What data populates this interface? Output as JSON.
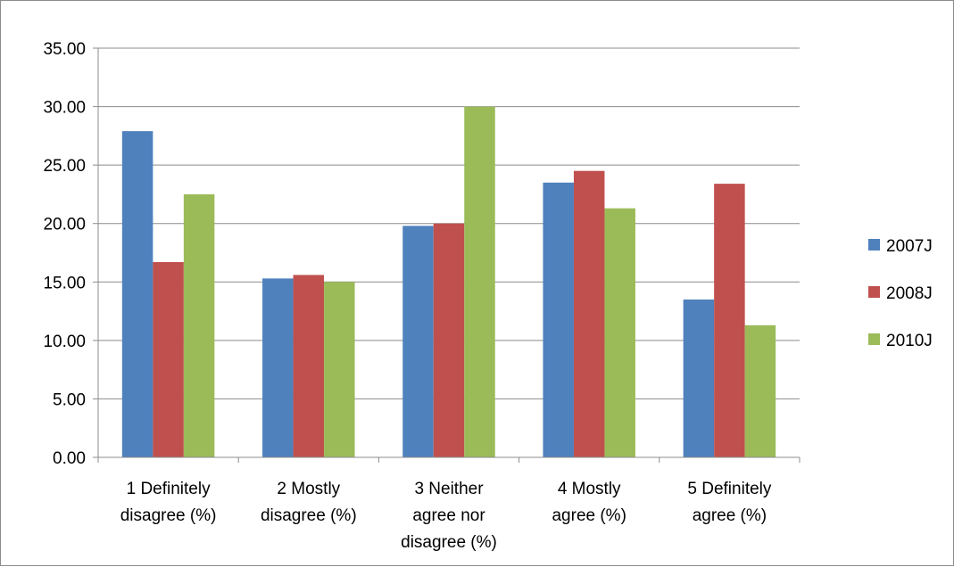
{
  "chart_data": {
    "type": "bar",
    "title": "",
    "xlabel": "",
    "ylabel": "",
    "ylim": [
      0,
      35
    ],
    "y_ticks": [
      "0.00",
      "5.00",
      "10.00",
      "15.00",
      "20.00",
      "25.00",
      "30.00",
      "35.00"
    ],
    "grid": true,
    "legend_position": "right",
    "categories": [
      [
        "1 Definitely",
        "disagree (%)"
      ],
      [
        "2 Mostly",
        "disagree (%)"
      ],
      [
        "3 Neither",
        "agree nor",
        "disagree (%)"
      ],
      [
        "4 Mostly",
        "agree (%)"
      ],
      [
        "5 Definitely",
        "agree (%)"
      ]
    ],
    "series": [
      {
        "name": "2007J",
        "color": "#4f81bd",
        "values": [
          27.9,
          15.3,
          19.8,
          23.5,
          13.5
        ]
      },
      {
        "name": "2008J",
        "color": "#c0504d",
        "values": [
          16.7,
          15.6,
          20.0,
          24.5,
          23.4
        ]
      },
      {
        "name": "2010J",
        "color": "#9bbb59",
        "values": [
          22.5,
          15.0,
          30.0,
          21.3,
          11.3
        ]
      }
    ]
  }
}
